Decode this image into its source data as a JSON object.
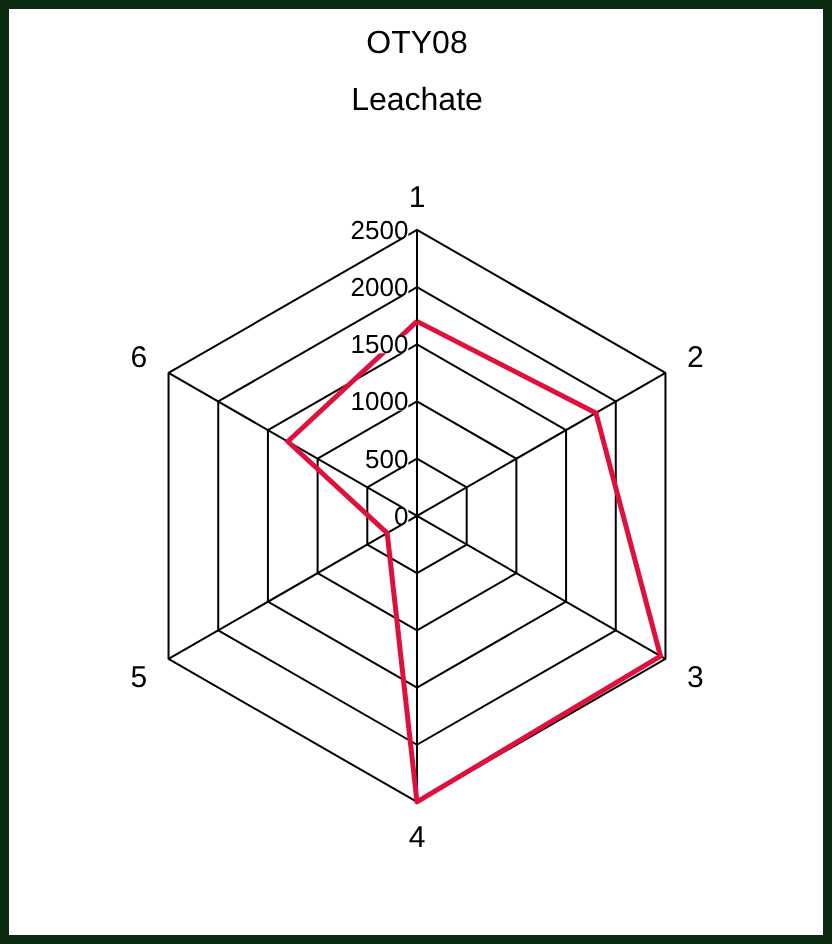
{
  "chart_data": {
    "type": "radar",
    "title": "OTY08",
    "subtitle": "Leachate",
    "categories": [
      "1",
      "2",
      "3",
      "4",
      "5",
      "6"
    ],
    "series": [
      {
        "color": "#e0103c",
        "values": [
          1700,
          1800,
          2450,
          2500,
          300,
          1300
        ]
      }
    ],
    "ylim": [
      0,
      2500
    ],
    "yticks": [
      0,
      500,
      1000,
      1500,
      2000,
      2500
    ],
    "grid": true
  }
}
